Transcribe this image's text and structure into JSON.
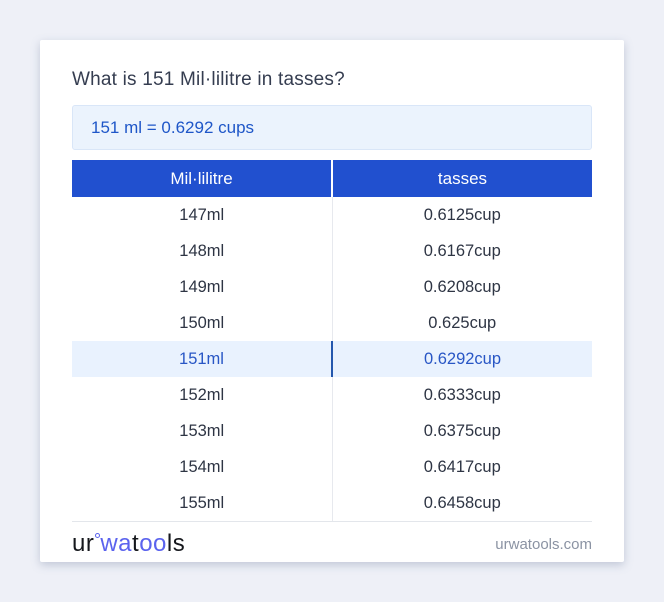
{
  "page": {
    "title": "What is 151 Mil·lilitre in tasses?",
    "answer": "151 ml = 0.6292 cups"
  },
  "table": {
    "columns": [
      "Mil·lilitre",
      "tasses"
    ],
    "highlight_index": 4,
    "rows": [
      {
        "ml": "147ml",
        "cup": "0.6125cup"
      },
      {
        "ml": "148ml",
        "cup": "0.6167cup"
      },
      {
        "ml": "149ml",
        "cup": "0.6208cup"
      },
      {
        "ml": "150ml",
        "cup": "0.625cup"
      },
      {
        "ml": "151ml",
        "cup": "0.6292cup"
      },
      {
        "ml": "152ml",
        "cup": "0.6333cup"
      },
      {
        "ml": "153ml",
        "cup": "0.6375cup"
      },
      {
        "ml": "154ml",
        "cup": "0.6417cup"
      },
      {
        "ml": "155ml",
        "cup": "0.6458cup"
      }
    ]
  },
  "footer": {
    "logo_ur": "ur",
    "logo_wa": "wa",
    "logo_t": "t",
    "logo_oo": "oo",
    "logo_ls": "ls",
    "site": "urwatools.com"
  },
  "colors": {
    "page_background": "#eef0f7",
    "header_blue": "#2150cf",
    "answer_box_bg": "#ebf3fd",
    "answer_text": "#1e56c8",
    "highlight_row_bg": "#e9f2fe",
    "highlight_text": "#2856c5",
    "logo_accent": "#5b63ee"
  }
}
